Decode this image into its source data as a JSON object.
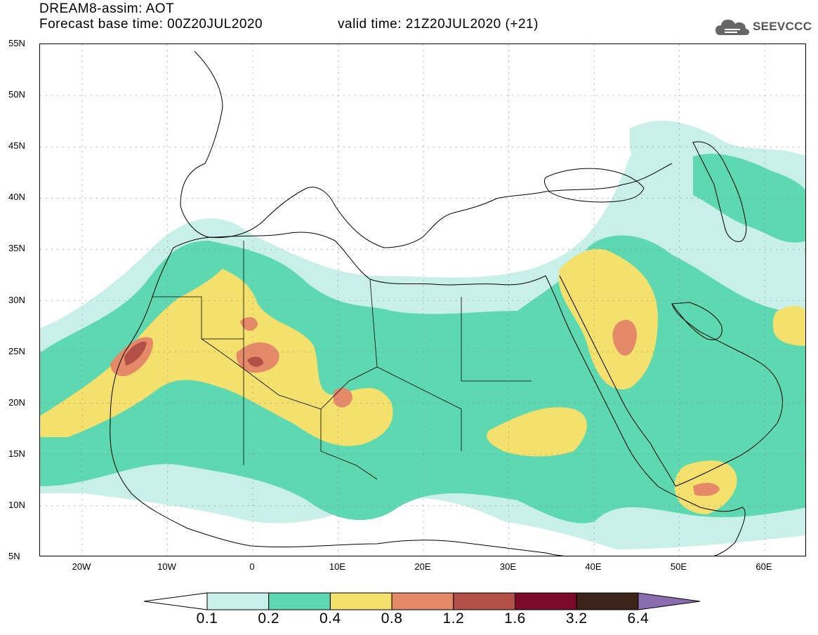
{
  "header": {
    "title": "DREAM8-assim: AOT",
    "base_time": "Forecast base time: 00Z20JUL2020",
    "valid_time": "valid time: 21Z20JUL2020 (+21)",
    "logo_text": "SEEVCCC"
  },
  "map": {
    "lat_labels": [
      "55N",
      "50N",
      "45N",
      "40N",
      "35N",
      "30N",
      "25N",
      "20N",
      "15N",
      "10N",
      "5N"
    ],
    "lon_labels": [
      "20W",
      "10W",
      "0",
      "10E",
      "20E",
      "30E",
      "40E",
      "50E",
      "60E"
    ],
    "colors": {
      "l1": "#c8f0e8",
      "l2": "#5ed8b0",
      "l3": "#f4e06c",
      "l4": "#e48a68",
      "l5": "#b25048",
      "l6": "#7e0a2a",
      "l7": "#3c2418",
      "l8": "#8c6cb0"
    }
  },
  "colorbar": {
    "labels": [
      "0.1",
      "0.2",
      "0.4",
      "0.8",
      "1.2",
      "1.6",
      "3.2",
      "6.4"
    ],
    "colors": [
      "#c8f0e8",
      "#5ed8b0",
      "#f4e06c",
      "#e48a68",
      "#b25048",
      "#7e0a2a",
      "#3c2418"
    ],
    "under_color": "#ffffff",
    "over_color": "#8c6cb0"
  }
}
